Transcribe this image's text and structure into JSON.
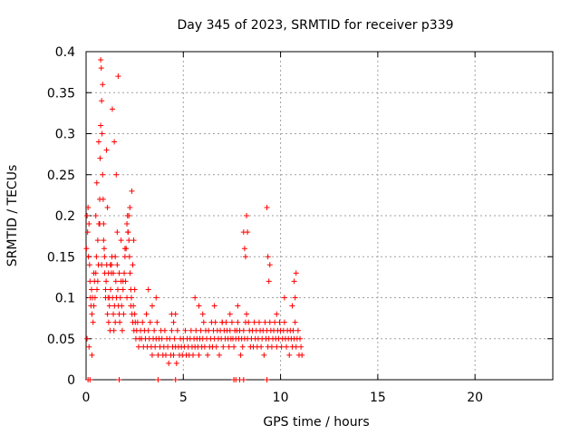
{
  "chart_data": {
    "type": "scatter",
    "title": "Day 345 of 2023, SRMTID for receiver p339",
    "xlabel": "GPS time / hours",
    "ylabel": "SRMTID / TECUs",
    "xlim": [
      0,
      24
    ],
    "ylim": [
      0,
      0.4
    ],
    "x_ticks": [
      0,
      5,
      10,
      15,
      20
    ],
    "x_tick_labels": [
      "0",
      "5",
      "10",
      "15",
      "20"
    ],
    "y_ticks": [
      0,
      0.05,
      0.1,
      0.15,
      0.2,
      0.25,
      0.3,
      0.35,
      0.4
    ],
    "y_tick_labels": [
      "0",
      "0.05",
      "0.1",
      "0.15",
      "0.2",
      "0.25",
      "0.3",
      "0.35",
      "0.4"
    ],
    "grid": true,
    "marker": "plus",
    "series_color": "#ff0000",
    "series": [
      {
        "name": "SRMTID",
        "x": [
          0.02,
          0.05,
          0.08,
          0.1,
          0.12,
          0.15,
          0.18,
          0.2,
          0.22,
          0.25,
          0.28,
          0.3,
          0.33,
          0.36,
          0.4,
          0.43,
          0.46,
          0.5,
          0.53,
          0.56,
          0.6,
          0.63,
          0.66,
          0.7,
          0.72,
          0.75,
          0.78,
          0.8,
          0.82,
          0.85,
          0.88,
          0.9,
          0.93,
          0.96,
          1.0,
          1.03,
          1.06,
          1.1,
          1.13,
          1.16,
          1.2,
          1.23,
          1.26,
          1.3,
          1.33,
          1.36,
          1.4,
          1.43,
          1.46,
          1.5,
          1.53,
          1.56,
          1.6,
          1.63,
          1.66,
          1.7,
          1.73,
          1.76,
          1.8,
          1.83,
          1.86,
          1.9,
          1.93,
          1.96,
          2.0,
          2.03,
          2.06,
          2.1,
          2.13,
          2.16,
          2.2,
          2.23,
          2.26,
          2.3,
          2.33,
          2.36,
          2.4,
          2.43,
          2.46,
          2.5,
          2.53,
          2.56,
          2.6,
          2.65,
          2.7,
          2.75,
          2.8,
          2.85,
          2.9,
          2.95,
          3.0,
          3.05,
          3.1,
          3.15,
          3.2,
          3.25,
          3.3,
          3.35,
          3.4,
          3.45,
          3.5,
          3.55,
          3.6,
          3.65,
          3.7,
          3.75,
          3.8,
          3.85,
          3.9,
          3.95,
          4.0,
          4.05,
          4.1,
          4.15,
          4.2,
          4.25,
          4.3,
          4.35,
          4.4,
          4.45,
          4.5,
          4.55,
          4.6,
          4.65,
          4.7,
          4.75,
          4.8,
          4.85,
          4.9,
          4.95,
          5.0,
          5.05,
          5.1,
          5.15,
          5.2,
          5.25,
          5.3,
          5.35,
          5.4,
          5.45,
          5.5,
          5.55,
          5.6,
          5.65,
          5.7,
          5.75,
          5.8,
          5.85,
          5.9,
          5.95,
          6.0,
          6.05,
          6.1,
          6.15,
          6.2,
          6.25,
          6.3,
          6.35,
          6.4,
          6.45,
          6.5,
          6.55,
          6.6,
          6.65,
          6.7,
          6.75,
          6.8,
          6.85,
          6.9,
          6.95,
          7.0,
          7.05,
          7.1,
          7.15,
          7.2,
          7.25,
          7.3,
          7.35,
          7.4,
          7.45,
          7.5,
          7.55,
          7.6,
          7.65,
          7.7,
          7.75,
          7.8,
          7.85,
          7.9,
          7.95,
          8.0,
          8.05,
          8.1,
          8.15,
          8.2,
          8.25,
          8.3,
          8.35,
          8.4,
          8.45,
          8.5,
          8.55,
          8.6,
          8.65,
          8.7,
          8.75,
          8.8,
          8.85,
          8.9,
          8.95,
          9.0,
          9.05,
          9.1,
          9.15,
          9.2,
          9.25,
          9.3,
          9.35,
          9.4,
          9.45,
          9.5,
          9.55,
          9.6,
          9.65,
          9.7,
          9.75,
          9.8,
          9.85,
          9.9,
          9.95,
          10.0,
          10.05,
          10.1,
          10.15,
          10.2,
          10.25,
          10.3,
          10.35,
          10.4,
          10.45,
          10.5,
          10.55,
          10.6,
          10.65,
          10.7,
          10.75,
          10.8,
          10.85,
          10.9,
          10.95,
          11.0,
          11.05,
          11.1,
          0.05,
          0.15,
          0.3,
          0.5,
          0.7,
          0.9,
          1.1,
          1.3,
          1.5,
          1.7,
          1.9,
          2.1,
          2.3,
          2.5,
          0.4,
          0.8,
          1.2,
          1.6,
          2.0,
          2.4,
          0.6,
          1.0,
          1.4,
          1.8,
          2.2,
          0.95,
          1.15,
          1.25,
          1.05,
          0.85,
          0.75,
          1.35,
          1.45,
          1.55,
          1.65,
          0.65,
          0.55,
          2.15,
          2.25,
          2.35,
          2.45,
          8.1,
          8.15,
          8.2,
          8.25,
          8.3,
          9.3,
          9.35,
          9.4,
          9.45,
          10.7,
          10.75,
          10.8,
          3.2,
          3.4,
          3.6,
          4.4,
          4.5,
          4.6,
          5.6,
          5.8,
          6.0,
          6.6,
          7.0,
          7.4,
          7.8,
          9.8,
          10.2,
          10.6,
          0.1,
          0.2,
          1.7,
          3.7,
          4.6,
          7.6,
          7.7,
          7.9,
          8.1,
          9.3
        ],
        "y": [
          0.16,
          0.2,
          0.18,
          0.21,
          0.15,
          0.19,
          0.14,
          0.12,
          0.1,
          0.09,
          0.11,
          0.08,
          0.1,
          0.07,
          0.09,
          0.12,
          0.1,
          0.13,
          0.15,
          0.11,
          0.17,
          0.14,
          0.19,
          0.22,
          0.27,
          0.31,
          0.38,
          0.34,
          0.3,
          0.25,
          0.22,
          0.19,
          0.16,
          0.13,
          0.1,
          0.12,
          0.14,
          0.08,
          0.1,
          0.07,
          0.09,
          0.06,
          0.11,
          0.13,
          0.15,
          0.1,
          0.08,
          0.06,
          0.09,
          0.07,
          0.12,
          0.1,
          0.14,
          0.11,
          0.09,
          0.08,
          0.07,
          0.1,
          0.12,
          0.09,
          0.06,
          0.11,
          0.08,
          0.13,
          0.15,
          0.12,
          0.16,
          0.19,
          0.2,
          0.18,
          0.17,
          0.15,
          0.13,
          0.11,
          0.1,
          0.08,
          0.07,
          0.09,
          0.06,
          0.08,
          0.07,
          0.05,
          0.06,
          0.07,
          0.04,
          0.05,
          0.06,
          0.05,
          0.07,
          0.04,
          0.06,
          0.05,
          0.08,
          0.04,
          0.06,
          0.05,
          0.07,
          0.04,
          0.03,
          0.05,
          0.06,
          0.04,
          0.05,
          0.07,
          0.03,
          0.05,
          0.04,
          0.06,
          0.05,
          0.03,
          0.04,
          0.06,
          0.03,
          0.05,
          0.04,
          0.02,
          0.05,
          0.03,
          0.06,
          0.04,
          0.03,
          0.05,
          0.04,
          0.02,
          0.06,
          0.04,
          0.03,
          0.05,
          0.04,
          0.03,
          0.05,
          0.04,
          0.06,
          0.03,
          0.05,
          0.04,
          0.03,
          0.05,
          0.06,
          0.04,
          0.03,
          0.05,
          0.04,
          0.06,
          0.05,
          0.04,
          0.03,
          0.05,
          0.06,
          0.04,
          0.05,
          0.07,
          0.04,
          0.06,
          0.05,
          0.03,
          0.06,
          0.04,
          0.05,
          0.07,
          0.04,
          0.06,
          0.05,
          0.07,
          0.04,
          0.06,
          0.05,
          0.03,
          0.06,
          0.05,
          0.07,
          0.04,
          0.06,
          0.05,
          0.07,
          0.06,
          0.05,
          0.04,
          0.06,
          0.05,
          0.07,
          0.05,
          0.04,
          0.06,
          0.05,
          0.06,
          0.07,
          0.05,
          0.06,
          0.03,
          0.05,
          0.04,
          0.06,
          0.05,
          0.07,
          0.08,
          0.05,
          0.07,
          0.06,
          0.04,
          0.05,
          0.06,
          0.04,
          0.07,
          0.05,
          0.06,
          0.04,
          0.05,
          0.07,
          0.06,
          0.04,
          0.05,
          0.06,
          0.03,
          0.07,
          0.05,
          0.06,
          0.04,
          0.05,
          0.07,
          0.06,
          0.04,
          0.05,
          0.06,
          0.07,
          0.05,
          0.04,
          0.06,
          0.05,
          0.07,
          0.06,
          0.04,
          0.05,
          0.06,
          0.07,
          0.05,
          0.04,
          0.06,
          0.05,
          0.03,
          0.06,
          0.05,
          0.04,
          0.06,
          0.05,
          0.07,
          0.04,
          0.05,
          0.06,
          0.03,
          0.05,
          0.04,
          0.03,
          0.05,
          0.04,
          0.03,
          0.2,
          0.19,
          0.17,
          0.21,
          0.14,
          0.15,
          0.13,
          0.12,
          0.1,
          0.09,
          0.11,
          0.13,
          0.14,
          0.1,
          0.18,
          0.16,
          0.14,
          0.12,
          0.11,
          0.13,
          0.17,
          0.2,
          0.15,
          0.13,
          0.14,
          0.28,
          0.36,
          0.39,
          0.33,
          0.29,
          0.25,
          0.37,
          0.29,
          0.24,
          0.18,
          0.21,
          0.23,
          0.17,
          0.18,
          0.16,
          0.15,
          0.2,
          0.18,
          0.21,
          0.15,
          0.12,
          0.14,
          0.12,
          0.1,
          0.13,
          0.11,
          0.09,
          0.1,
          0.08,
          0.07,
          0.08,
          0.1,
          0.09,
          0.08,
          0.09,
          0.07,
          0.08,
          0.09,
          0.08,
          0.1,
          0.09,
          0.0,
          0.0,
          0.0,
          0.0,
          0.0,
          0.0,
          0.0,
          0.0,
          0.0,
          0.0
        ]
      }
    ]
  }
}
